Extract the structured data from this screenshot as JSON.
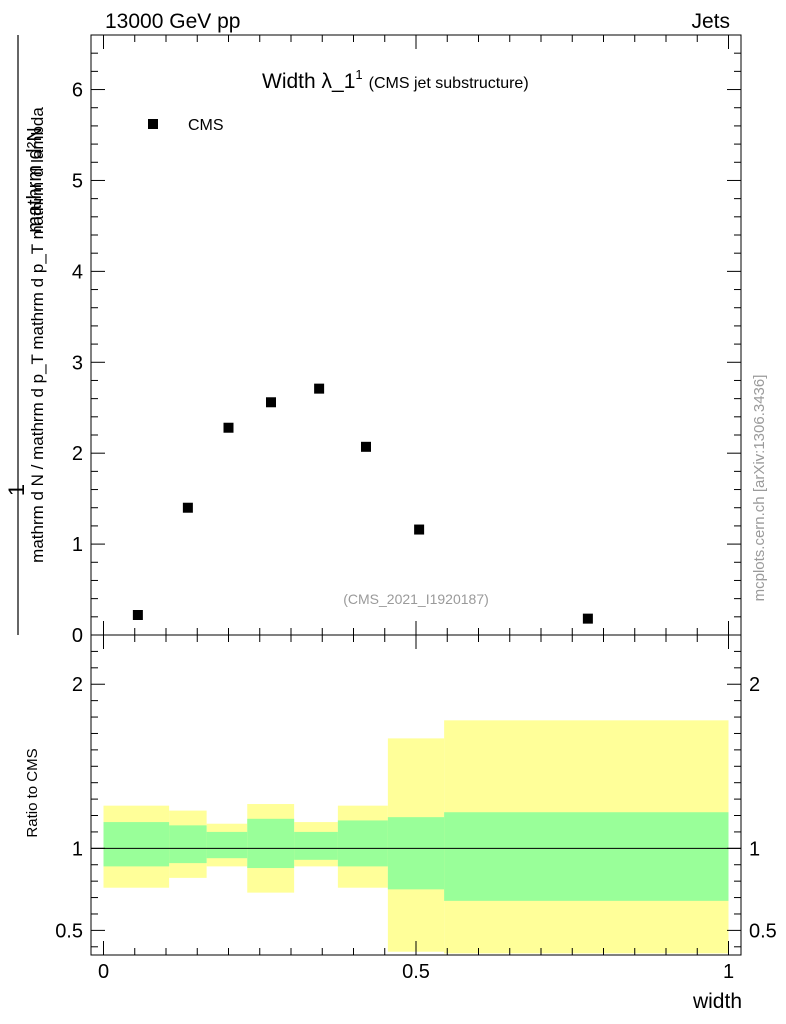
{
  "header": {
    "energy_label": "13000 GeV pp",
    "process_label": "Jets"
  },
  "side_label": "mcplots.cern.ch [arXiv:1306.3436]",
  "analysis_label": "(CMS_2021_I1920187)",
  "chart_data": [
    {
      "type": "scatter",
      "title_main": "Width λ_1",
      "title_sup": "1",
      "title_suffix": "(CMS jet substructure)",
      "ylabel_top": "mathrm d²N",
      "ylabel_bottom": "mathrm d N / mathrm d p_T mathrm d p_T mathrm d lambda",
      "ylabel_one": "1",
      "ylim": [
        0,
        6.6
      ],
      "xlim": [
        -0.02,
        1.02
      ],
      "yticks": [
        {
          "v": 0,
          "label": "0"
        },
        {
          "v": 1,
          "label": "1"
        },
        {
          "v": 2,
          "label": "2"
        },
        {
          "v": 3,
          "label": "3"
        },
        {
          "v": 4,
          "label": "4"
        },
        {
          "v": 5,
          "label": "5"
        },
        {
          "v": 6,
          "label": "6"
        }
      ],
      "legend": {
        "entry": "CMS",
        "position": "top-left"
      },
      "series": [
        {
          "name": "CMS",
          "x": [
            0.055,
            0.135,
            0.2,
            0.268,
            0.345,
            0.42,
            0.505,
            0.775
          ],
          "y": [
            0.22,
            1.4,
            2.28,
            2.56,
            2.71,
            2.07,
            1.16,
            0.18
          ]
        }
      ]
    },
    {
      "type": "area",
      "ylabel": "Ratio to CMS",
      "xlabel": "width",
      "ylim": [
        0.35,
        2.3
      ],
      "xlim": [
        -0.02,
        1.02
      ],
      "yticks": [
        {
          "v": 0.5,
          "label": "0.5"
        },
        {
          "v": 1,
          "label": "1"
        },
        {
          "v": 2,
          "label": "2"
        }
      ],
      "xticks": [
        {
          "v": 0,
          "label": "0"
        },
        {
          "v": 0.5,
          "label": "0.5"
        },
        {
          "v": 1,
          "label": "1"
        }
      ],
      "reference_line": 1,
      "bands": {
        "bin_edges": [
          0,
          0.105,
          0.165,
          0.23,
          0.305,
          0.375,
          0.455,
          0.545,
          1.0
        ],
        "inner_lo": [
          0.89,
          0.91,
          0.94,
          0.88,
          0.93,
          0.89,
          0.75,
          0.68
        ],
        "inner_hi": [
          1.16,
          1.14,
          1.1,
          1.18,
          1.1,
          1.17,
          1.19,
          1.22
        ],
        "outer_lo": [
          0.76,
          0.82,
          0.89,
          0.73,
          0.89,
          0.76,
          0.37,
          0.36
        ],
        "outer_hi": [
          1.26,
          1.23,
          1.15,
          1.27,
          1.16,
          1.26,
          1.67,
          1.78
        ],
        "inner_color": "#99ff99",
        "outer_color": "#ffff99"
      }
    }
  ]
}
